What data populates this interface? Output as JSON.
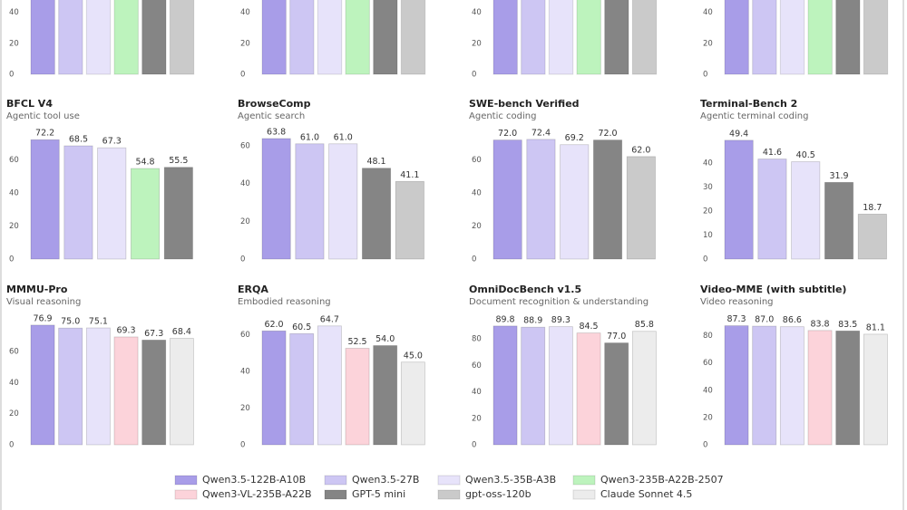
{
  "series": [
    {
      "name": "Qwen3.5-122B-A10B",
      "color": "#a89de8"
    },
    {
      "name": "Qwen3.5-27B",
      "color": "#cdc6f3"
    },
    {
      "name": "Qwen3.5-35B-A3B",
      "color": "#e7e3fa"
    },
    {
      "name": "Qwen3-235B-A22B-2507",
      "color": "#bdf3bd"
    },
    {
      "name": "Qwen3-VL-235B-A22B",
      "color": "#fcd3da"
    },
    {
      "name": "GPT-5 mini",
      "color": "#858585"
    },
    {
      "name": "gpt-oss-120b",
      "color": "#cacaca"
    },
    {
      "name": "Claude Sonnet 4.5",
      "color": "#ececec"
    }
  ],
  "chart_data": [
    {
      "type": "bar",
      "ylim": [
        0,
        48
      ],
      "yticks": [
        0,
        20,
        40
      ]
    },
    {
      "type": "bar",
      "ylim": [
        0,
        48
      ],
      "yticks": [
        0,
        20,
        40
      ]
    },
    {
      "type": "bar",
      "ylim": [
        0,
        48
      ],
      "yticks": [
        0,
        20,
        40
      ]
    },
    {
      "type": "bar",
      "ylim": [
        0,
        48
      ],
      "yticks": [
        0,
        20,
        40
      ]
    },
    {
      "type": "bar",
      "title": "BFCL V4",
      "subtitle": "Agentic tool use",
      "ylim": [
        0,
        80
      ],
      "yticks": [
        0,
        20,
        40,
        60
      ],
      "values": [
        72.2,
        68.5,
        67.3,
        54.8,
        null,
        55.5,
        null,
        null
      ],
      "value_labels": [
        "72.2",
        "68.5",
        "67.3",
        "54.8",
        null,
        "55.5",
        null,
        null
      ]
    },
    {
      "type": "bar",
      "title": "BrowseComp",
      "subtitle": "Agentic search",
      "ylim": [
        0,
        70
      ],
      "yticks": [
        0,
        20,
        40,
        60
      ],
      "values": [
        63.8,
        61.0,
        61.0,
        null,
        null,
        48.1,
        41.1,
        null
      ],
      "value_labels": [
        "63.8",
        "61.0",
        "61.0",
        null,
        null,
        "48.1",
        "41.1",
        null
      ]
    },
    {
      "type": "bar",
      "title": "SWE-bench Verified",
      "subtitle": "Agentic coding",
      "ylim": [
        0,
        80
      ],
      "yticks": [
        0,
        20,
        40,
        60
      ],
      "values": [
        72.0,
        72.4,
        69.2,
        null,
        null,
        72.0,
        62.0,
        null
      ],
      "value_labels": [
        "72.0",
        "72.4",
        "69.2",
        null,
        null,
        "72.0",
        "62.0",
        null
      ]
    },
    {
      "type": "bar",
      "title": "Terminal-Bench 2",
      "subtitle": "Agentic terminal coding",
      "ylim": [
        0,
        55
      ],
      "yticks": [
        0,
        10,
        20,
        30,
        40
      ],
      "values": [
        49.4,
        41.6,
        40.5,
        null,
        null,
        31.9,
        18.7,
        null
      ],
      "value_labels": [
        "49.4",
        "41.6",
        "40.5",
        null,
        null,
        "31.9",
        "18.7",
        null
      ]
    },
    {
      "type": "bar",
      "title": "MMMU-Pro",
      "subtitle": "Visual reasoning",
      "ylim": [
        0,
        85
      ],
      "yticks": [
        0,
        20,
        40,
        60
      ],
      "values": [
        76.9,
        75.0,
        75.1,
        null,
        69.3,
        67.3,
        null,
        68.4
      ],
      "value_labels": [
        "76.9",
        "75.0",
        "75.1",
        null,
        "69.3",
        "67.3",
        null,
        "68.4"
      ]
    },
    {
      "type": "bar",
      "title": "ERQA",
      "subtitle": "Embodied reasoning",
      "ylim": [
        0,
        72
      ],
      "yticks": [
        0,
        20,
        40,
        60
      ],
      "values": [
        62.0,
        60.5,
        64.7,
        null,
        52.5,
        54.0,
        null,
        45.0
      ],
      "value_labels": [
        "62.0",
        "60.5",
        "64.7",
        null,
        "52.5",
        "54.0",
        null,
        "45.0"
      ]
    },
    {
      "type": "bar",
      "title": "OmniDocBench v1.5",
      "subtitle": "Document recognition & understanding",
      "ylim": [
        0,
        100
      ],
      "yticks": [
        0,
        20,
        40,
        60,
        80
      ],
      "values": [
        89.8,
        88.9,
        89.3,
        null,
        84.5,
        77.0,
        null,
        85.8
      ],
      "value_labels": [
        "89.8",
        "88.9",
        "89.3",
        null,
        "84.5",
        "77.0",
        null,
        "85.8"
      ]
    },
    {
      "type": "bar",
      "title": "Video-MME (with subtitle)",
      "subtitle": "Video reasoning",
      "ylim": [
        0,
        97
      ],
      "yticks": [
        0,
        20,
        40,
        60,
        80
      ],
      "values": [
        87.3,
        87.0,
        86.6,
        null,
        83.8,
        83.5,
        null,
        81.1
      ],
      "value_labels": [
        "87.3",
        "87.0",
        "86.6",
        null,
        "83.8",
        "83.5",
        null,
        "81.1"
      ]
    }
  ]
}
